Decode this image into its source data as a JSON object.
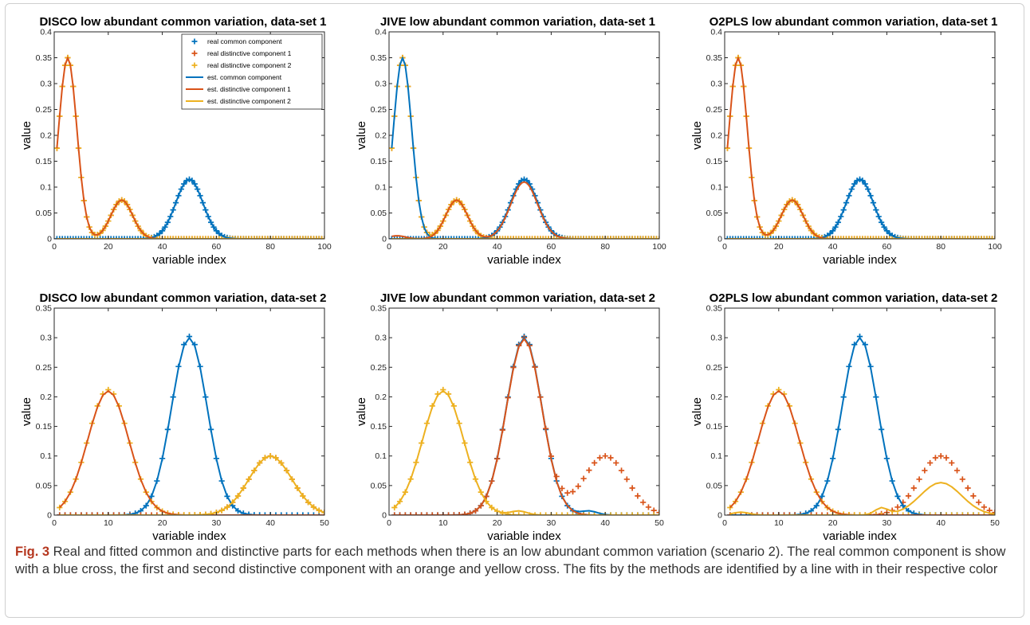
{
  "figure": {
    "caption_label": "Fig. 3",
    "caption_text": " Real and fitted common and distinctive parts for each methods when there is an low abundant common variation (scenario 2). The real common component is show with a blue cross, the first and second distinctive component with an orange and yellow cross. The fits by the methods are identified by a line with in their respective color"
  },
  "colors": {
    "blue": "#0072BD",
    "orange": "#D95319",
    "yellow": "#EDB120"
  },
  "legend": {
    "entries": [
      {
        "label": "real common component",
        "marker": "cross",
        "color": "#0072BD"
      },
      {
        "label": "real distinctive component 1",
        "marker": "cross",
        "color": "#D95319"
      },
      {
        "label": "real distinctive component 2",
        "marker": "cross",
        "color": "#EDB120"
      },
      {
        "label": "est. common component",
        "marker": "line",
        "color": "#0072BD"
      },
      {
        "label": "est. distinctive component 1",
        "marker": "line",
        "color": "#D95319"
      },
      {
        "label": "est. distinctive component 2",
        "marker": "line",
        "color": "#EDB120"
      }
    ]
  },
  "chart_data": [
    {
      "type": "line",
      "title": "DISCO low abundant common variation, data-set 1",
      "xlabel": "variable index",
      "ylabel": "value",
      "xlim": [
        0,
        100
      ],
      "ylim": [
        0,
        0.4
      ],
      "xticks": [
        "0",
        "20",
        "40",
        "60",
        "80",
        "100"
      ],
      "yticks": [
        "0",
        "0.05",
        "0.1",
        "0.15",
        "0.2",
        "0.25",
        "0.3",
        "0.35",
        "0.4"
      ],
      "legend": "top-right",
      "series": [
        {
          "name": "real common component",
          "kind": "markers",
          "color": "#0072BD",
          "peaks": [
            {
              "center": 50,
              "height": 0.115,
              "width": 5.0
            }
          ]
        },
        {
          "name": "real distinctive component 1",
          "kind": "markers",
          "color": "#D95319",
          "peaks": [
            {
              "center": 5,
              "height": 0.35,
              "width": 3.4
            },
            {
              "center": 25,
              "height": 0.075,
              "width": 4.0
            }
          ]
        },
        {
          "name": "real distinctive component 2",
          "kind": "markers",
          "color": "#EDB120",
          "peaks": [
            {
              "center": 5,
              "height": 0.35,
              "width": 3.4
            },
            {
              "center": 25,
              "height": 0.075,
              "width": 4.0
            }
          ]
        },
        {
          "name": "est. common component",
          "kind": "line",
          "color": "#0072BD",
          "peaks": [
            {
              "center": 50,
              "height": 0.115,
              "width": 5.0
            }
          ]
        },
        {
          "name": "est. distinctive component 1",
          "kind": "line",
          "color": "#D95319",
          "peaks": [
            {
              "center": 5,
              "height": 0.35,
              "width": 3.4
            },
            {
              "center": 25,
              "height": 0.075,
              "width": 4.0
            }
          ]
        },
        {
          "name": "est. distinctive component 2",
          "kind": "line",
          "color": "#EDB120",
          "peaks": []
        }
      ]
    },
    {
      "type": "line",
      "title": "JIVE low abundant common variation, data-set 1",
      "xlabel": "variable index",
      "ylabel": "value",
      "xlim": [
        0,
        100
      ],
      "ylim": [
        0,
        0.4
      ],
      "xticks": [
        "0",
        "20",
        "40",
        "60",
        "80",
        "100"
      ],
      "yticks": [
        "0",
        "0.05",
        "0.1",
        "0.15",
        "0.2",
        "0.25",
        "0.3",
        "0.35",
        "0.4"
      ],
      "series": [
        {
          "name": "real common component",
          "kind": "markers",
          "color": "#0072BD",
          "peaks": [
            {
              "center": 50,
              "height": 0.115,
              "width": 5.0
            }
          ]
        },
        {
          "name": "real distinctive component 1",
          "kind": "markers",
          "color": "#D95319",
          "peaks": [
            {
              "center": 5,
              "height": 0.35,
              "width": 3.4
            },
            {
              "center": 25,
              "height": 0.075,
              "width": 4.0
            }
          ]
        },
        {
          "name": "real distinctive component 2",
          "kind": "markers",
          "color": "#EDB120",
          "peaks": [
            {
              "center": 5,
              "height": 0.35,
              "width": 3.4
            },
            {
              "center": 25,
              "height": 0.075,
              "width": 4.0
            }
          ]
        },
        {
          "name": "est. common component",
          "kind": "line",
          "color": "#0072BD",
          "peaks": [
            {
              "center": 5,
              "height": 0.35,
              "width": 3.4
            },
            {
              "center": 50,
              "height": 0.115,
              "width": 5.0
            }
          ]
        },
        {
          "name": "est. distinctive component 1",
          "kind": "line",
          "color": "#D95319",
          "peaks": [
            {
              "center": 25,
              "height": 0.075,
              "width": 4.0
            },
            {
              "center": 50,
              "height": 0.11,
              "width": 5.0
            },
            {
              "center": 3,
              "height": 0.006,
              "width": 3.0
            }
          ]
        },
        {
          "name": "est. distinctive component 2",
          "kind": "line",
          "color": "#EDB120",
          "peaks": []
        }
      ]
    },
    {
      "type": "line",
      "title": "O2PLS low abundant common variation, data-set 1",
      "xlabel": "variable index",
      "ylabel": "value",
      "xlim": [
        0,
        100
      ],
      "ylim": [
        0,
        0.4
      ],
      "xticks": [
        "0",
        "20",
        "40",
        "60",
        "80",
        "100"
      ],
      "yticks": [
        "0",
        "0.05",
        "0.1",
        "0.15",
        "0.2",
        "0.25",
        "0.3",
        "0.35",
        "0.4"
      ],
      "series": [
        {
          "name": "real common component",
          "kind": "markers",
          "color": "#0072BD",
          "peaks": [
            {
              "center": 50,
              "height": 0.115,
              "width": 5.0
            }
          ]
        },
        {
          "name": "real distinctive component 1",
          "kind": "markers",
          "color": "#D95319",
          "peaks": [
            {
              "center": 5,
              "height": 0.35,
              "width": 3.4
            },
            {
              "center": 25,
              "height": 0.075,
              "width": 4.0
            }
          ]
        },
        {
          "name": "real distinctive component 2",
          "kind": "markers",
          "color": "#EDB120",
          "peaks": [
            {
              "center": 5,
              "height": 0.35,
              "width": 3.4
            },
            {
              "center": 25,
              "height": 0.075,
              "width": 4.0
            }
          ]
        },
        {
          "name": "est. common component",
          "kind": "line",
          "color": "#0072BD",
          "peaks": [
            {
              "center": 50,
              "height": 0.115,
              "width": 5.0
            }
          ]
        },
        {
          "name": "est. distinctive component 1",
          "kind": "line",
          "color": "#D95319",
          "peaks": [
            {
              "center": 5,
              "height": 0.35,
              "width": 3.4
            },
            {
              "center": 25,
              "height": 0.075,
              "width": 4.0
            }
          ]
        },
        {
          "name": "est. distinctive component 2",
          "kind": "line",
          "color": "#EDB120",
          "peaks": []
        }
      ]
    },
    {
      "type": "line",
      "title": "DISCO low abundant common variation, data-set 2",
      "xlabel": "variable index",
      "ylabel": "value",
      "xlim": [
        0,
        50
      ],
      "ylim": [
        0,
        0.35
      ],
      "xticks": [
        "0",
        "10",
        "20",
        "30",
        "40",
        "50"
      ],
      "yticks": [
        "0",
        "0.05",
        "0.1",
        "0.15",
        "0.2",
        "0.25",
        "0.3",
        "0.35"
      ],
      "series": [
        {
          "name": "real common component",
          "kind": "markers",
          "color": "#0072BD",
          "peaks": [
            {
              "center": 25,
              "height": 0.302,
              "width": 3.3
            }
          ]
        },
        {
          "name": "real distinctive component 1",
          "kind": "markers",
          "color": "#D95319",
          "peaks": [
            {
              "center": 40,
              "height": 0.1,
              "width": 4.0
            }
          ]
        },
        {
          "name": "real distinctive component 2",
          "kind": "markers",
          "color": "#EDB120",
          "peaks": [
            {
              "center": 10,
              "height": 0.212,
              "width": 3.8
            },
            {
              "center": 40,
              "height": 0.1,
              "width": 4.0
            }
          ]
        },
        {
          "name": "est. common component",
          "kind": "line",
          "color": "#0072BD",
          "peaks": [
            {
              "center": 25,
              "height": 0.3,
              "width": 3.3
            }
          ]
        },
        {
          "name": "est. distinctive component 1",
          "kind": "line",
          "color": "#D95319",
          "peaks": [
            {
              "center": 10,
              "height": 0.21,
              "width": 3.8
            }
          ]
        },
        {
          "name": "est. distinctive component 2",
          "kind": "line",
          "color": "#EDB120",
          "peaks": [
            {
              "center": 40,
              "height": 0.1,
              "width": 4.0
            }
          ]
        }
      ]
    },
    {
      "type": "line",
      "title": "JIVE low abundant common variation, data-set 2",
      "xlabel": "variable index",
      "ylabel": "value",
      "xlim": [
        0,
        50
      ],
      "ylim": [
        0,
        0.35
      ],
      "xticks": [
        "0",
        "10",
        "20",
        "30",
        "40",
        "50"
      ],
      "yticks": [
        "0",
        "0.05",
        "0.1",
        "0.15",
        "0.2",
        "0.25",
        "0.3",
        "0.35"
      ],
      "series": [
        {
          "name": "real common component",
          "kind": "markers",
          "color": "#0072BD",
          "peaks": [
            {
              "center": 25,
              "height": 0.302,
              "width": 3.3
            }
          ]
        },
        {
          "name": "real distinctive component 1",
          "kind": "markers",
          "color": "#D95319",
          "peaks": [
            {
              "center": 25,
              "height": 0.3,
              "width": 3.3
            },
            {
              "center": 40,
              "height": 0.1,
              "width": 4.0
            }
          ]
        },
        {
          "name": "real distinctive component 2",
          "kind": "markers",
          "color": "#EDB120",
          "peaks": [
            {
              "center": 10,
              "height": 0.212,
              "width": 3.8
            }
          ]
        },
        {
          "name": "est. common component",
          "kind": "line",
          "color": "#0072BD",
          "peaks": [
            {
              "center": 25,
              "height": 0.3,
              "width": 3.3
            },
            {
              "center": 37,
              "height": 0.007,
              "width": 1.5
            }
          ]
        },
        {
          "name": "est. distinctive component 1",
          "kind": "line",
          "color": "#D95319",
          "peaks": [
            {
              "center": 25,
              "height": 0.298,
              "width": 3.3
            }
          ]
        },
        {
          "name": "est. distinctive component 2",
          "kind": "line",
          "color": "#EDB120",
          "peaks": [
            {
              "center": 10,
              "height": 0.21,
              "width": 3.8
            },
            {
              "center": 24,
              "height": 0.007,
              "width": 1.5
            }
          ]
        }
      ]
    },
    {
      "type": "line",
      "title": "O2PLS low abundant common variation, data-set 2",
      "xlabel": "variable index",
      "ylabel": "value",
      "xlim": [
        0,
        50
      ],
      "ylim": [
        0,
        0.35
      ],
      "xticks": [
        "0",
        "10",
        "20",
        "30",
        "40",
        "50"
      ],
      "yticks": [
        "0",
        "0.05",
        "0.1",
        "0.15",
        "0.2",
        "0.25",
        "0.3",
        "0.35"
      ],
      "series": [
        {
          "name": "real common component",
          "kind": "markers",
          "color": "#0072BD",
          "peaks": [
            {
              "center": 25,
              "height": 0.302,
              "width": 3.3
            }
          ]
        },
        {
          "name": "real distinctive component 1",
          "kind": "markers",
          "color": "#D95319",
          "peaks": [
            {
              "center": 40,
              "height": 0.1,
              "width": 4.0
            }
          ]
        },
        {
          "name": "real distinctive component 2",
          "kind": "markers",
          "color": "#EDB120",
          "peaks": [
            {
              "center": 10,
              "height": 0.212,
              "width": 3.8
            }
          ]
        },
        {
          "name": "est. common component",
          "kind": "line",
          "color": "#0072BD",
          "peaks": [
            {
              "center": 25,
              "height": 0.3,
              "width": 3.3
            }
          ]
        },
        {
          "name": "est. distinctive component 1",
          "kind": "line",
          "color": "#D95319",
          "peaks": [
            {
              "center": 10,
              "height": 0.21,
              "width": 3.8
            }
          ]
        },
        {
          "name": "est. distinctive component 2",
          "kind": "line",
          "color": "#EDB120",
          "peaks": [
            {
              "center": 40,
              "height": 0.055,
              "width": 3.8
            },
            {
              "center": 29,
              "height": 0.012,
              "width": 1.2
            },
            {
              "center": 3,
              "height": 0.005,
              "width": 1.5
            }
          ]
        }
      ]
    }
  ]
}
